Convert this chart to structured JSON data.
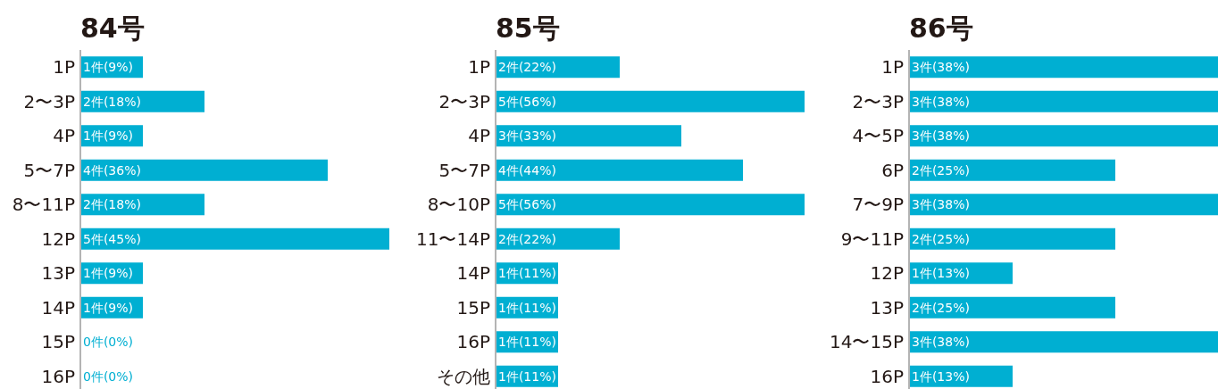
{
  "chart_data": [
    {
      "type": "bar",
      "orientation": "horizontal",
      "title": "84号",
      "color": "#00afd2",
      "categories": [
        "1P",
        "2〜3P",
        "4P",
        "5〜7P",
        "8〜11P",
        "12P",
        "13P",
        "14P",
        "15P",
        "16P"
      ],
      "values": [
        1,
        2,
        1,
        4,
        2,
        5,
        1,
        1,
        0,
        0
      ],
      "value_labels": [
        "1件(9%)",
        "2件(18%)",
        "1件(9%)",
        "4件(36%)",
        "2件(18%)",
        "5件(45%)",
        "1件(9%)",
        "1件(9%)",
        "0件(0%)",
        "0件(0%)"
      ]
    },
    {
      "type": "bar",
      "orientation": "horizontal",
      "title": "85号",
      "color": "#00afd2",
      "categories": [
        "1P",
        "2〜3P",
        "4P",
        "5〜7P",
        "8〜10P",
        "11〜14P",
        "14P",
        "15P",
        "16P",
        "その他"
      ],
      "values": [
        2,
        5,
        3,
        4,
        5,
        2,
        1,
        1,
        1,
        1
      ],
      "value_labels": [
        "2件(22%)",
        "5件(56%)",
        "3件(33%)",
        "4件(44%)",
        "5件(56%)",
        "2件(22%)",
        "1件(11%)",
        "1件(11%)",
        "1件(11%)",
        "1件(11%)"
      ]
    },
    {
      "type": "bar",
      "orientation": "horizontal",
      "title": "86号",
      "color": "#00afd2",
      "categories": [
        "1P",
        "2〜3P",
        "4〜5P",
        "6P",
        "7〜9P",
        "9〜11P",
        "12P",
        "13P",
        "14〜15P",
        "16P"
      ],
      "values": [
        3,
        3,
        3,
        2,
        3,
        2,
        1,
        2,
        3,
        1
      ],
      "value_labels": [
        "3件(38%)",
        "3件(38%)",
        "3件(38%)",
        "2件(25%)",
        "3件(38%)",
        "2件(25%)",
        "1件(13%)",
        "2件(25%)",
        "3件(38%)",
        "1件(13%)"
      ]
    }
  ]
}
